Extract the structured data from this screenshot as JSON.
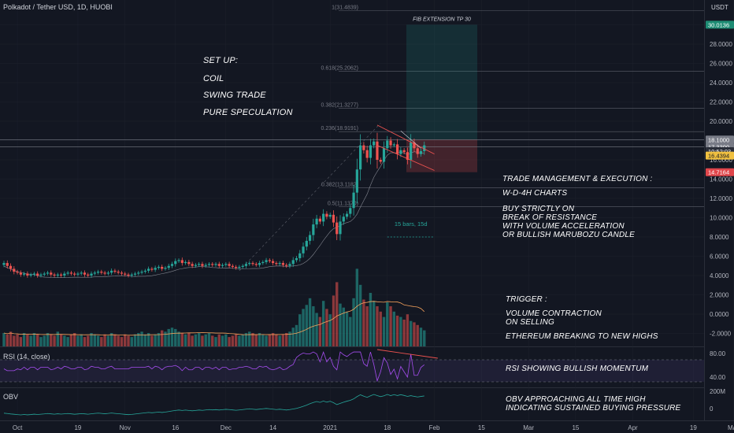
{
  "header": {
    "title": "Polkadot / Tether USD, 1D, HUOBI"
  },
  "axis": {
    "currency": "USDT",
    "price_ticks": [
      "30.0000",
      "28.0000",
      "26.0000",
      "24.0000",
      "22.0000",
      "20.0000",
      "18.0000",
      "16.0000",
      "14.0000",
      "12.0000",
      "10.0000",
      "8.0000",
      "6.0000",
      "4.0000",
      "2.0000",
      "0.0000",
      "-2.0000"
    ],
    "price_tags": [
      {
        "label": "30.0136",
        "value": 30.0136,
        "color": "#1e8c74"
      },
      {
        "label": "18.1000",
        "value": 18.1,
        "color": "#787b86"
      },
      {
        "label": "17.3300",
        "value": 17.33,
        "color": "#787b86"
      },
      {
        "label": "10:52:03",
        "value": 16.9,
        "color": "#2a2e39"
      },
      {
        "label": "16.4394",
        "value": 16.4394,
        "color": "#f0c040"
      },
      {
        "label": "14.7164",
        "value": 14.7164,
        "color": "#e0464b"
      }
    ],
    "rsi_ticks": [
      "80.00",
      "40.00"
    ],
    "obv_ticks": [
      "200M",
      "0"
    ],
    "time_ticks": [
      {
        "label": "Oct",
        "i": 4
      },
      {
        "label": "19",
        "i": 22
      },
      {
        "label": "Nov",
        "i": 36
      },
      {
        "label": "16",
        "i": 51
      },
      {
        "label": "Dec",
        "i": 66
      },
      {
        "label": "14",
        "i": 80
      },
      {
        "label": "2021",
        "i": 97
      },
      {
        "label": "18",
        "i": 114
      },
      {
        "label": "Feb",
        "i": 128
      },
      {
        "label": "15",
        "i": 142
      },
      {
        "label": "Mar",
        "i": 156
      },
      {
        "label": "15",
        "i": 170
      },
      {
        "label": "Apr",
        "i": 187
      },
      {
        "label": "19",
        "i": 205
      },
      {
        "label": "May",
        "i": 217
      }
    ]
  },
  "fib_labels": [
    {
      "text": "1(31.4839)",
      "value": 31.48
    },
    {
      "text": "0.618(25.2062)",
      "value": 25.2
    },
    {
      "text": "0.382(21.3277)",
      "value": 21.33
    },
    {
      "text": "0.236(18.9191)",
      "value": 18.92
    },
    {
      "text": "0.382(13.1182)",
      "value": 13.12
    },
    {
      "text": "0.5(11.1370)",
      "value": 11.14
    }
  ],
  "fib_target_label": "FIB EXTENSION TP 30",
  "bars_label": "15 bars, 15d",
  "notes": {
    "setup": "SET UP:",
    "coil": "COIL",
    "swing": "SWING TRADE",
    "spec": "PURE SPECULATION",
    "mgmt": "TRADE MANAGEMENT & EXECUTION :",
    "wd4h": "W-D-4H CHARTS",
    "buy": "BUY STRICTLY ON\nBREAK OF RESISTANCE\nWITH VOLUME ACCELERATION\nOR BULLISH MARUBOZU CANDLE",
    "trigger": "TRIGGER :",
    "vol": "VOLUME CONTRACTION\nON SELLING",
    "eth": "ETHEREUM BREAKING TO NEW HIGHS",
    "rsi": "RSI SHOWING BULLISH MOMENTUM",
    "obv": "OBV APPROACHING ALL TIME HIGH\nINDICATING SUSTAINED BUYING PRESSURE"
  },
  "indicators": {
    "rsi": "RSI (14, close)",
    "obv": "OBV"
  },
  "colors": {
    "up": "#26a69a",
    "down": "#ef5350",
    "bg": "#131722",
    "grid": "#1e222d"
  },
  "chart_data": {
    "type": "candlestick",
    "title": "Polkadot / Tether USD, 1D, HUOBI",
    "price_range": [
      -3.2,
      32
    ],
    "closes": [
      5.3,
      5.0,
      4.7,
      4.4,
      4.3,
      4.1,
      4.2,
      4.0,
      4.1,
      4.2,
      4.0,
      4.1,
      4.2,
      4.3,
      4.1,
      4.0,
      4.1,
      4.0,
      4.2,
      4.3,
      4.2,
      4.1,
      4.2,
      4.3,
      4.1,
      4.0,
      4.2,
      4.3,
      4.4,
      4.3,
      4.2,
      4.3,
      4.5,
      4.4,
      4.3,
      4.2,
      4.1,
      4.0,
      4.1,
      4.2,
      4.3,
      4.4,
      4.5,
      4.7,
      4.6,
      4.8,
      4.9,
      4.7,
      4.8,
      5.0,
      5.2,
      5.5,
      5.6,
      5.3,
      5.4,
      5.2,
      5.0,
      5.1,
      5.2,
      5.0,
      5.1,
      5.2,
      5.1,
      5.2,
      5.0,
      5.1,
      5.2,
      5.0,
      4.9,
      4.8,
      4.9,
      5.0,
      5.2,
      5.3,
      5.2,
      5.1,
      5.3,
      5.4,
      5.6,
      5.5,
      5.3,
      5.2,
      5.3,
      5.1,
      5.0,
      5.2,
      5.6,
      5.8,
      6.3,
      7.0,
      7.6,
      8.2,
      9.3,
      9.9,
      9.6,
      10.4,
      10.1,
      10.3,
      9.5,
      8.3,
      9.6,
      10.1,
      10.4,
      11.0,
      12.6,
      15.0,
      17.5,
      17.0,
      16.2,
      17.5,
      17.9,
      16.0,
      15.8,
      17.2,
      18.0,
      17.5,
      17.6,
      16.6,
      17.0,
      16.8,
      16.0,
      17.8,
      17.2,
      16.6,
      16.9,
      17.5
    ],
    "volume": [
      1.0,
      0.9,
      1.1,
      0.8,
      0.9,
      0.7,
      1.0,
      0.9,
      0.8,
      1.0,
      0.9,
      0.7,
      0.8,
      1.0,
      0.9,
      0.8,
      1.1,
      0.9,
      0.8,
      0.7,
      0.9,
      1.0,
      0.8,
      0.9,
      0.7,
      0.8,
      1.0,
      0.9,
      0.8,
      0.7,
      0.9,
      0.8,
      1.0,
      0.9,
      0.8,
      0.7,
      0.9,
      0.8,
      0.7,
      0.9,
      1.0,
      1.1,
      0.9,
      1.0,
      0.8,
      0.9,
      1.0,
      1.2,
      1.1,
      1.3,
      1.4,
      1.3,
      1.1,
      1.0,
      0.9,
      1.0,
      0.8,
      0.9,
      1.0,
      0.8,
      0.9,
      1.0,
      0.8,
      0.7,
      0.9,
      0.8,
      0.9,
      0.7,
      0.8,
      0.9,
      0.8,
      0.9,
      1.0,
      1.1,
      1.0,
      0.9,
      1.0,
      0.9,
      0.8,
      0.9,
      1.0,
      0.9,
      0.8,
      0.9,
      1.0,
      1.1,
      1.4,
      1.6,
      2.4,
      2.8,
      3.1,
      3.6,
      3.0,
      2.5,
      2.2,
      3.4,
      2.8,
      2.4,
      3.8,
      4.8,
      3.2,
      2.9,
      2.6,
      2.2,
      3.6,
      5.8,
      4.6,
      3.5,
      3.0,
      4.0,
      3.4,
      3.0,
      2.6,
      2.2,
      3.3,
      3.0,
      2.6,
      2.3,
      2.2,
      2.0,
      2.4,
      1.9,
      1.8,
      1.6,
      1.4,
      1.2
    ],
    "fib_levels": [
      31.48,
      25.2,
      21.33,
      18.92,
      13.12,
      11.14
    ],
    "target": 30.0136,
    "entry_zone": [
      14.7164,
      18.1
    ],
    "bars_count": 15
  }
}
